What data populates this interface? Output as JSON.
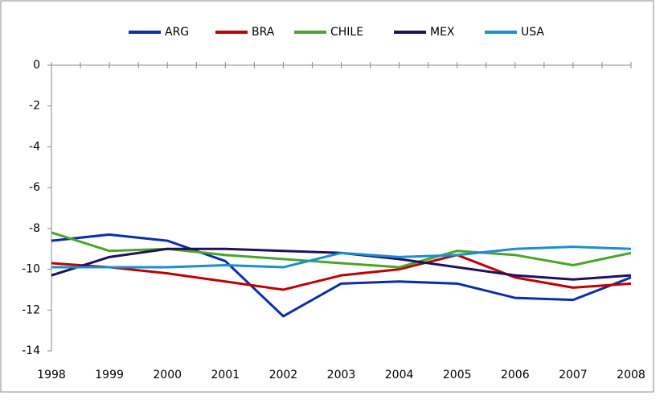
{
  "chart_data": {
    "type": "line",
    "categories": [
      "1998",
      "1999",
      "2000",
      "2001",
      "2002",
      "2003",
      "2004",
      "2005",
      "2006",
      "2007",
      "2008"
    ],
    "series": [
      {
        "name": "ARG",
        "color": "#0a2fa8",
        "values": [
          -8.6,
          -8.3,
          -8.6,
          -9.6,
          -12.3,
          -10.7,
          -10.6,
          -10.7,
          -11.4,
          -11.5,
          -10.4
        ]
      },
      {
        "name": "BRA",
        "color": "#c00000",
        "values": [
          -9.7,
          -9.9,
          -10.2,
          -10.6,
          -11.0,
          -10.3,
          -10.0,
          -9.3,
          -10.4,
          -10.9,
          -10.7
        ]
      },
      {
        "name": "CHILE",
        "color": "#4aa52a",
        "values": [
          -8.2,
          -9.1,
          -9.0,
          -9.3,
          -9.5,
          -9.7,
          -9.9,
          -9.1,
          -9.3,
          -9.8,
          -9.2
        ]
      },
      {
        "name": "MEX",
        "color": "#1f1060",
        "values": [
          -10.3,
          -9.4,
          -9.0,
          -9.0,
          -9.1,
          -9.2,
          -9.5,
          -9.9,
          -10.3,
          -10.5,
          -10.3
        ]
      },
      {
        "name": "USA",
        "color": "#1a8fd0",
        "values": [
          -9.9,
          -9.9,
          -9.9,
          -9.8,
          -9.9,
          -9.2,
          -9.4,
          -9.3,
          -9.0,
          -8.9,
          -9.0
        ]
      }
    ],
    "ylim": [
      -14,
      0
    ],
    "yticks": [
      0,
      -2,
      -4,
      -6,
      -8,
      -10,
      -12,
      -14
    ],
    "grid": false,
    "legend": "top"
  }
}
